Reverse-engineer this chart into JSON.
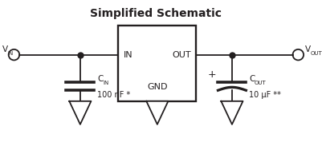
{
  "title": "Simplified Schematic",
  "title_fontsize": 10,
  "title_bold": true,
  "bg_color": "#ffffff",
  "line_color": "#231f20",
  "line_width": 1.3,
  "fig_w": 4.01,
  "fig_h": 1.78,
  "dpi": 100,
  "ic_label_in": "IN",
  "ic_label_out": "OUT",
  "ic_label_gnd": "GND",
  "cin_val": "100 nF *",
  "cout_val": "10 μF **"
}
